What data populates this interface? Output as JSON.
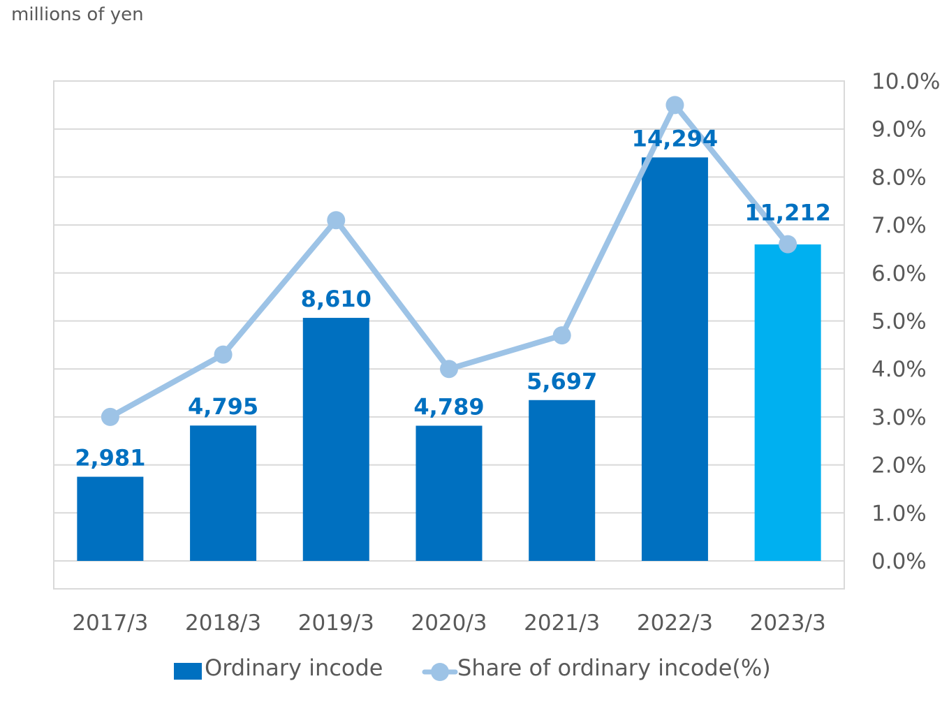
{
  "chart_data": {
    "type": "bar",
    "unit_label": "millions of yen",
    "categories": [
      "2017/3",
      "2018/3",
      "2019/3",
      "2020/3",
      "2021/3",
      "2022/3",
      "2023/3"
    ],
    "series": [
      {
        "name": "Ordinary incode",
        "type": "bar",
        "axis": "left",
        "values": [
          2981,
          4795,
          8610,
          4789,
          5697,
          14294,
          11212
        ],
        "data_labels": [
          "2,981",
          "4,795",
          "8,610",
          "4,789",
          "5,697",
          "14,294",
          "11,212"
        ],
        "color": "#0070C0",
        "highlight_color": "#00B0F0",
        "highlight_index": 6
      },
      {
        "name": "Share of ordinary incode(%)",
        "type": "line",
        "axis": "right",
        "values": [
          3.0,
          4.3,
          7.1,
          4.0,
          4.7,
          9.5,
          6.6
        ],
        "color": "#9DC3E6"
      }
    ],
    "left_axis": {
      "min": 0,
      "max": 17000,
      "shown": false
    },
    "right_axis": {
      "min": 0,
      "max": 10,
      "ticks": [
        "0.0%",
        "1.0%",
        "2.0%",
        "3.0%",
        "4.0%",
        "5.0%",
        "6.0%",
        "7.0%",
        "8.0%",
        "9.0%",
        "10.0%"
      ]
    },
    "grid": true,
    "legend_position": "bottom"
  }
}
